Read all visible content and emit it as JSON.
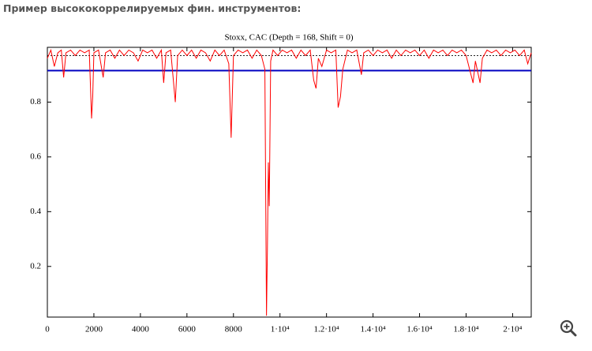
{
  "header": {
    "title": "Пример высококоррелируемых фин. инструментов:"
  },
  "chart_data": {
    "type": "line",
    "title": "Stoxx, CAC (Depth = 168, Shift = 0)",
    "x": [
      0,
      150,
      300,
      450,
      600,
      700,
      800,
      1000,
      1200,
      1400,
      1600,
      1800,
      1900,
      1950,
      2000,
      2200,
      2400,
      2500,
      2700,
      2900,
      3100,
      3300,
      3500,
      3700,
      3900,
      4100,
      4300,
      4500,
      4700,
      4900,
      5000,
      5100,
      5300,
      5500,
      5600,
      5800,
      6000,
      6200,
      6400,
      6600,
      6800,
      7000,
      7200,
      7400,
      7600,
      7800,
      7900,
      8000,
      8200,
      8400,
      8600,
      8800,
      9000,
      9200,
      9350,
      9420,
      9460,
      9500,
      9540,
      9600,
      9700,
      9900,
      10100,
      10300,
      10500,
      10700,
      10900,
      11100,
      11300,
      11450,
      11550,
      11650,
      11800,
      12000,
      12200,
      12400,
      12500,
      12600,
      12700,
      12900,
      13100,
      13300,
      13500,
      13600,
      13800,
      14000,
      14200,
      14400,
      14600,
      14800,
      15000,
      15200,
      15400,
      15600,
      15800,
      16000,
      16200,
      16400,
      16600,
      16800,
      17000,
      17200,
      17400,
      17600,
      17800,
      18000,
      18300,
      18400,
      18600,
      18700,
      18900,
      19100,
      19300,
      19500,
      19700,
      19900,
      20100,
      20300,
      20500,
      20650,
      20800
    ],
    "series": [
      {
        "color": "#ff0000",
        "values": [
          0.96,
          0.99,
          0.93,
          0.98,
          0.99,
          0.89,
          0.98,
          0.99,
          0.97,
          0.99,
          0.98,
          0.99,
          0.74,
          0.82,
          0.98,
          0.99,
          0.89,
          0.98,
          0.99,
          0.96,
          0.99,
          0.97,
          0.99,
          0.98,
          0.95,
          0.99,
          0.98,
          0.99,
          0.96,
          0.99,
          0.87,
          0.98,
          0.99,
          0.8,
          0.97,
          0.99,
          0.97,
          0.99,
          0.96,
          0.99,
          0.98,
          0.95,
          0.99,
          0.97,
          0.99,
          0.94,
          0.67,
          0.97,
          0.99,
          0.98,
          0.99,
          0.96,
          0.99,
          0.97,
          0.92,
          0.02,
          0.27,
          0.58,
          0.42,
          0.95,
          0.99,
          0.97,
          0.99,
          0.98,
          0.99,
          0.96,
          0.99,
          0.97,
          0.99,
          0.88,
          0.85,
          0.96,
          0.93,
          0.99,
          0.98,
          0.99,
          0.78,
          0.82,
          0.92,
          0.99,
          0.98,
          0.99,
          0.9,
          0.98,
          0.99,
          0.97,
          0.99,
          0.98,
          0.99,
          0.96,
          0.99,
          0.97,
          0.99,
          0.98,
          0.99,
          0.97,
          0.99,
          0.96,
          0.99,
          0.98,
          0.99,
          0.97,
          0.99,
          0.98,
          0.99,
          0.97,
          0.87,
          0.95,
          0.87,
          0.96,
          0.99,
          0.98,
          0.99,
          0.97,
          0.99,
          0.98,
          0.99,
          0.97,
          0.99,
          0.94,
          0.98
        ]
      }
    ],
    "reference_lines": [
      {
        "value": 0.915,
        "color": "#0000c0",
        "style": "solid"
      },
      {
        "value": 0.97,
        "color": "#000000",
        "style": "dotted"
      }
    ],
    "xlim": [
      0,
      20800
    ],
    "ylim": [
      0.015,
      1
    ],
    "xticks": [
      0,
      2000,
      4000,
      6000,
      8000,
      {
        "value": 10000,
        "label": "1·10⁴"
      },
      {
        "value": 12000,
        "label": "1.2·10⁴"
      },
      {
        "value": 14000,
        "label": "1.4·10⁴"
      },
      {
        "value": 16000,
        "label": "1.6·10⁴"
      },
      {
        "value": 18000,
        "label": "1.8·10⁴"
      },
      {
        "value": 20000,
        "label": "2·10⁴"
      }
    ],
    "yticks": [
      0.2,
      0.4,
      0.6,
      0.8
    ],
    "grid": false
  }
}
